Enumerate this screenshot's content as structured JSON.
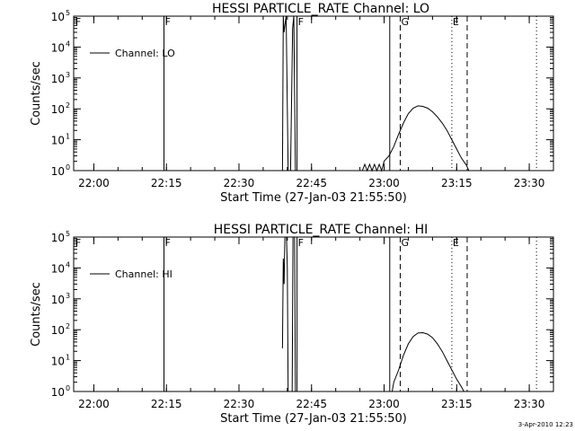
{
  "footer_timestamp": "3-Apr-2010 12:23",
  "chart_data": [
    {
      "type": "line",
      "title": "HESSI PARTICLE_RATE Channel: LO",
      "xlabel": "Start Time (27-Jan-03 21:55:50)",
      "ylabel": "Counts/sec",
      "ylim": [
        1,
        100000
      ],
      "yscale": "log",
      "xlim": [
        "21:55:50",
        "23:35:00"
      ],
      "grid": false,
      "legend": {
        "label": "Channel: LO",
        "placement": "top-left"
      },
      "xticks": [
        "22:00",
        "22:15",
        "22:30",
        "22:45",
        "23:00",
        "23:15",
        "23:30"
      ],
      "yticks": [
        "10^0",
        "10^1",
        "10^2",
        "10^3",
        "10^4",
        "10^5"
      ],
      "markers": [
        {
          "label": "F",
          "time": "21:56:00",
          "style": "none"
        },
        {
          "label": "F",
          "time": "22:14:30",
          "style": "solid"
        },
        {
          "label": "F",
          "time": "22:42:00",
          "style": "solid"
        },
        {
          "label": "",
          "time": "23:01:10",
          "style": "solid"
        },
        {
          "label": "G",
          "time": "23:03:20",
          "style": "dashed"
        },
        {
          "label": "E",
          "time": "23:14:00",
          "style": "dotted"
        },
        {
          "label": "",
          "time": "23:17:10",
          "style": "dashed"
        },
        {
          "label": "",
          "time": "23:31:30",
          "style": "dotted"
        }
      ],
      "series": [
        {
          "name": "Channel: LO",
          "points": [
            [
              "22:39:00",
              1
            ],
            [
              "22:39:10",
              100000
            ],
            [
              "22:39:20",
              30000
            ],
            [
              "22:39:30",
              50000
            ],
            [
              "22:39:45",
              100000
            ],
            [
              "22:40:10",
              1
            ],
            [
              "22:40:40",
              1
            ],
            [
              "22:41:05",
              40000
            ],
            [
              "22:41:20",
              100000
            ],
            [
              "22:41:40",
              1
            ],
            [
              "22:55:30",
              1
            ],
            [
              "22:56:00",
              1.6
            ],
            [
              "22:56:30",
              1
            ],
            [
              "22:57:00",
              1.6
            ],
            [
              "22:57:30",
              1
            ],
            [
              "22:58:00",
              1.6
            ],
            [
              "22:58:30",
              1
            ],
            [
              "22:59:00",
              1.6
            ],
            [
              "22:59:30",
              1
            ],
            [
              "23:00:00",
              2
            ],
            [
              "23:01:00",
              3
            ],
            [
              "23:02:00",
              6
            ],
            [
              "23:03:00",
              15
            ],
            [
              "23:04:00",
              35
            ],
            [
              "23:05:00",
              70
            ],
            [
              "23:06:00",
              105
            ],
            [
              "23:07:00",
              125
            ],
            [
              "23:08:00",
              120
            ],
            [
              "23:09:00",
              105
            ],
            [
              "23:10:00",
              80
            ],
            [
              "23:11:00",
              55
            ],
            [
              "23:12:00",
              35
            ],
            [
              "23:13:00",
              20
            ],
            [
              "23:14:00",
              10
            ],
            [
              "23:15:00",
              5
            ],
            [
              "23:16:00",
              2.5
            ],
            [
              "23:17:00",
              1.5
            ],
            [
              "23:17:30",
              1
            ],
            [
              "23:18:00",
              1
            ]
          ]
        }
      ]
    },
    {
      "type": "line",
      "title": "HESSI PARTICLE_RATE Channel: HI",
      "xlabel": "Start Time (27-Jan-03 21:55:50)",
      "ylabel": "Counts/sec",
      "ylim": [
        1,
        100000
      ],
      "yscale": "log",
      "xlim": [
        "21:55:50",
        "23:35:00"
      ],
      "grid": false,
      "legend": {
        "label": "Channel: HI",
        "placement": "top-left"
      },
      "xticks": [
        "22:00",
        "22:15",
        "22:30",
        "22:45",
        "23:00",
        "23:15",
        "23:30"
      ],
      "yticks": [
        "10^0",
        "10^1",
        "10^2",
        "10^3",
        "10^4",
        "10^5"
      ],
      "markers": [
        {
          "label": "F",
          "time": "21:56:00",
          "style": "none"
        },
        {
          "label": "F",
          "time": "22:14:30",
          "style": "solid"
        },
        {
          "label": "F",
          "time": "22:42:00",
          "style": "solid"
        },
        {
          "label": "",
          "time": "23:01:10",
          "style": "solid"
        },
        {
          "label": "G",
          "time": "23:03:20",
          "style": "dashed"
        },
        {
          "label": "E",
          "time": "23:14:00",
          "style": "dotted"
        },
        {
          "label": "",
          "time": "23:17:10",
          "style": "dashed"
        },
        {
          "label": "",
          "time": "23:31:30",
          "style": "dotted"
        }
      ],
      "series": [
        {
          "name": "Channel: HI",
          "points": [
            [
              "22:39:00",
              25
            ],
            [
              "22:39:10",
              20000
            ],
            [
              "22:39:20",
              3000
            ],
            [
              "22:39:30",
              100000
            ],
            [
              "22:39:50",
              100000
            ],
            [
              "22:40:00",
              10000
            ],
            [
              "22:40:10",
              1
            ],
            [
              "22:41:00",
              1
            ],
            [
              "22:41:10",
              100000
            ],
            [
              "22:41:30",
              100000
            ],
            [
              "22:41:40",
              1
            ],
            [
              "23:01:40",
              1
            ],
            [
              "23:02:00",
              2
            ],
            [
              "23:03:00",
              5
            ],
            [
              "23:04:00",
              15
            ],
            [
              "23:05:00",
              35
            ],
            [
              "23:06:00",
              60
            ],
            [
              "23:07:00",
              78
            ],
            [
              "23:08:00",
              80
            ],
            [
              "23:09:00",
              72
            ],
            [
              "23:10:00",
              55
            ],
            [
              "23:11:00",
              35
            ],
            [
              "23:12:00",
              20
            ],
            [
              "23:13:00",
              10
            ],
            [
              "23:14:00",
              5
            ],
            [
              "23:15:00",
              2.5
            ],
            [
              "23:16:00",
              1.4
            ],
            [
              "23:16:30",
              1
            ],
            [
              "23:17:00",
              1
            ]
          ]
        }
      ]
    }
  ]
}
